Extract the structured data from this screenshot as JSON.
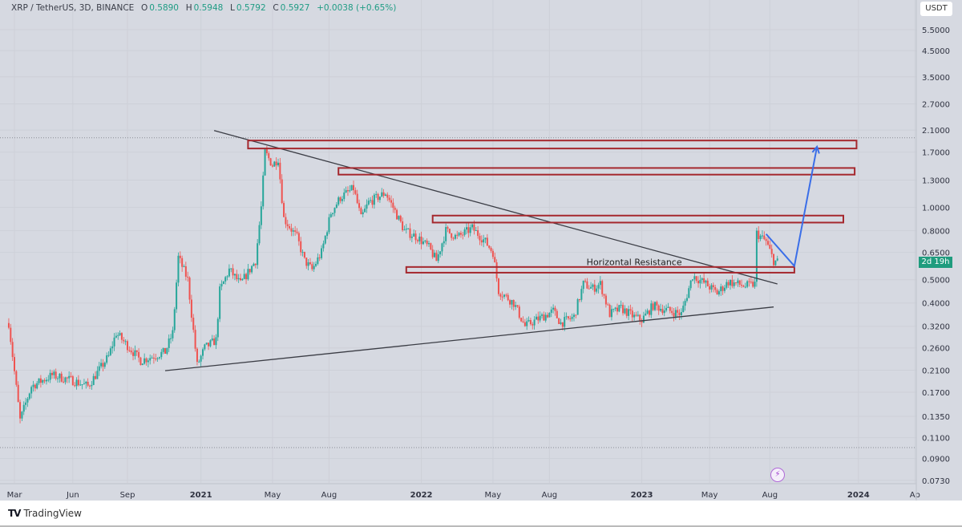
{
  "header": {
    "symbol": "XRP / TetherUS, 3D, BINANCE",
    "open_label": "O",
    "open": "0.5890",
    "high_label": "H",
    "high": "0.5948",
    "low_label": "L",
    "low": "0.5792",
    "close_label": "C",
    "close": "0.5927",
    "change": "+0.0038 (+0.65%)"
  },
  "currency_button": "USDT",
  "countdown": "2d 19h",
  "footer": {
    "brand": "TradingView",
    "logo": "TV"
  },
  "colors": {
    "up": "#26a69a",
    "down": "#ef5350",
    "box": "#a5282e",
    "arrow": "#3a6ee8",
    "trend": "#3b3d45"
  },
  "chart_data": {
    "type": "candlestick",
    "title": "XRP / TetherUS, 3D, BINANCE",
    "yscale": "log",
    "ylim": [
      0.073,
      5.5
    ],
    "xlim_time_units": [
      -0.4,
      48.5
    ],
    "y_ticks": [
      "5.5000",
      "4.5000",
      "3.5000",
      "2.7000",
      "2.1000",
      "1.7000",
      "1.3000",
      "1.0000",
      "0.8000",
      "0.6500",
      "0.5000",
      "0.4000",
      "0.3200",
      "0.2600",
      "0.2100",
      "0.1700",
      "0.1350",
      "0.1100",
      "0.0900",
      "0.0730"
    ],
    "x_ticks": [
      {
        "label": "Mar",
        "t": 0,
        "bold": false
      },
      {
        "label": "Jun",
        "t": 3.1,
        "bold": false
      },
      {
        "label": "Sep",
        "t": 6.0,
        "bold": false
      },
      {
        "label": "2021",
        "t": 9.9,
        "bold": true
      },
      {
        "label": "May",
        "t": 13.7,
        "bold": false
      },
      {
        "label": "Aug",
        "t": 16.7,
        "bold": false
      },
      {
        "label": "2022",
        "t": 21.6,
        "bold": true
      },
      {
        "label": "May",
        "t": 25.4,
        "bold": false
      },
      {
        "label": "Aug",
        "t": 28.4,
        "bold": false
      },
      {
        "label": "2023",
        "t": 33.3,
        "bold": true
      },
      {
        "label": "May",
        "t": 36.9,
        "bold": false
      },
      {
        "label": "Aug",
        "t": 40.1,
        "bold": false
      },
      {
        "label": "2024",
        "t": 44.8,
        "bold": true
      },
      {
        "label": "Ap",
        "t": 47.8,
        "bold": false
      }
    ],
    "approx_price_path": [
      [
        -0.3,
        0.33
      ],
      [
        0.3,
        0.13
      ],
      [
        0.9,
        0.18
      ],
      [
        2.0,
        0.2
      ],
      [
        3.1,
        0.19
      ],
      [
        3.9,
        0.18
      ],
      [
        5.0,
        0.24
      ],
      [
        5.4,
        0.3
      ],
      [
        6.3,
        0.25
      ],
      [
        6.7,
        0.23
      ],
      [
        8.0,
        0.25
      ],
      [
        8.4,
        0.3
      ],
      [
        8.7,
        0.62
      ],
      [
        9.2,
        0.5
      ],
      [
        9.7,
        0.22
      ],
      [
        10.1,
        0.26
      ],
      [
        10.7,
        0.28
      ],
      [
        10.9,
        0.45
      ],
      [
        11.4,
        0.55
      ],
      [
        12.0,
        0.48
      ],
      [
        12.8,
        0.6
      ],
      [
        13.1,
        1.0
      ],
      [
        13.3,
        1.7
      ],
      [
        13.7,
        1.5
      ],
      [
        14.0,
        1.6
      ],
      [
        14.3,
        0.9
      ],
      [
        15.0,
        0.75
      ],
      [
        15.4,
        0.6
      ],
      [
        15.8,
        0.55
      ],
      [
        16.3,
        0.65
      ],
      [
        16.8,
        0.95
      ],
      [
        17.3,
        1.1
      ],
      [
        18.0,
        1.2
      ],
      [
        18.4,
        0.9
      ],
      [
        18.8,
        1.05
      ],
      [
        19.7,
        1.15
      ],
      [
        20.1,
        1.0
      ],
      [
        20.7,
        0.8
      ],
      [
        21.4,
        0.75
      ],
      [
        22.0,
        0.68
      ],
      [
        22.4,
        0.6
      ],
      [
        22.9,
        0.8
      ],
      [
        23.5,
        0.75
      ],
      [
        24.3,
        0.82
      ],
      [
        25.0,
        0.72
      ],
      [
        25.4,
        0.65
      ],
      [
        25.7,
        0.45
      ],
      [
        26.5,
        0.4
      ],
      [
        27.1,
        0.32
      ],
      [
        27.7,
        0.34
      ],
      [
        28.6,
        0.37
      ],
      [
        29.0,
        0.33
      ],
      [
        29.7,
        0.35
      ],
      [
        30.2,
        0.48
      ],
      [
        30.7,
        0.46
      ],
      [
        31.1,
        0.48
      ],
      [
        31.6,
        0.36
      ],
      [
        32.2,
        0.38
      ],
      [
        32.9,
        0.35
      ],
      [
        33.3,
        0.34
      ],
      [
        33.9,
        0.39
      ],
      [
        34.8,
        0.37
      ],
      [
        35.4,
        0.36
      ],
      [
        36.0,
        0.52
      ],
      [
        36.7,
        0.48
      ],
      [
        37.3,
        0.44
      ],
      [
        37.9,
        0.49
      ],
      [
        38.8,
        0.47
      ],
      [
        39.3,
        0.48
      ],
      [
        39.4,
        0.78
      ],
      [
        39.9,
        0.72
      ],
      [
        40.3,
        0.6
      ],
      [
        40.5,
        0.5927
      ]
    ],
    "annotations": {
      "trendlines": [
        {
          "name": "descending-trendline",
          "from": [
            10.6,
            2.09
          ],
          "to": [
            40.5,
            0.48
          ]
        },
        {
          "name": "ascending-trendline",
          "from": [
            8.0,
            0.209
          ],
          "to": [
            40.3,
            0.385
          ]
        }
      ],
      "zones": [
        {
          "name": "resistance-zone-1",
          "t": [
            12.4,
            44.7
          ],
          "price": [
            1.76,
            1.9
          ]
        },
        {
          "name": "resistance-zone-2",
          "t": [
            17.2,
            44.6
          ],
          "price": [
            1.37,
            1.46
          ]
        },
        {
          "name": "resistance-zone-3",
          "t": [
            22.2,
            44.0
          ],
          "price": [
            0.865,
            0.925
          ]
        },
        {
          "name": "horizontal-resistance-zone",
          "t": [
            20.8,
            41.4
          ],
          "price": [
            0.535,
            0.565
          ]
        }
      ],
      "zone_label": {
        "text": "Horizontal Resistance",
        "t": 32.9,
        "price": 0.575
      },
      "projection_arrow": [
        [
          39.9,
          0.775
        ],
        [
          41.4,
          0.57
        ],
        [
          42.6,
          1.79
        ]
      ],
      "dotted_levels": [
        1.95,
        0.1
      ]
    }
  }
}
